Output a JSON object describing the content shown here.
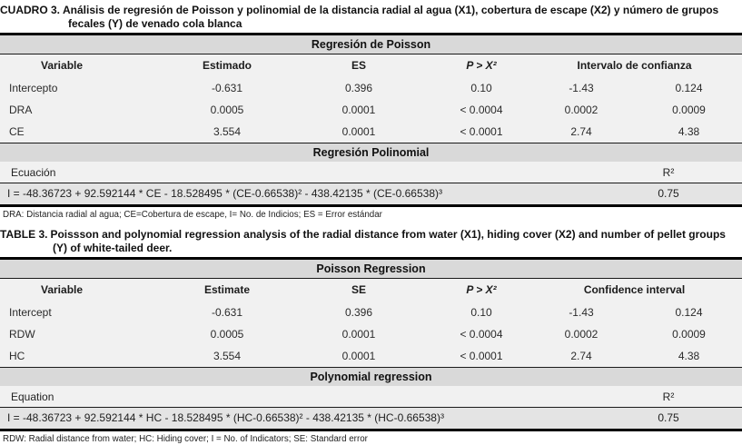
{
  "colors": {
    "section_band_bg": "#d9d9d9",
    "table_body_bg": "#f1f1f1",
    "equation_row_bg": "#e4e4e4",
    "rule_color": "#000000",
    "page_bg": "#ffffff"
  },
  "tables": [
    {
      "language": "spanish",
      "title_label": "CUADRO 3.",
      "title_text": "Análisis de regresión de Poisson y polinomial de la distancia radial al agua (X1), cobertura de escape (X2) y número de grupos fecales (Y) de venado cola blanca",
      "section1": "Regresión de Poisson",
      "headers": {
        "variable": "Variable",
        "estimate": "Estimado",
        "se": "ES",
        "p": "P > X²",
        "ci": "Intervalo de confianza"
      },
      "rows": [
        {
          "variable": "Intercepto",
          "estimate": "-0.631",
          "se": "0.396",
          "p": "0.10",
          "ci_low": "-1.43",
          "ci_high": "0.124"
        },
        {
          "variable": "DRA",
          "estimate": "0.0005",
          "se": "0.0001",
          "p": "< 0.0004",
          "ci_low": "0.0002",
          "ci_high": "0.0009"
        },
        {
          "variable": "CE",
          "estimate": "3.554",
          "se": "0.0001",
          "p": "< 0.0001",
          "ci_low": "2.74",
          "ci_high": "4.38"
        }
      ],
      "section2": "Regresión Polinomial",
      "equation_label": "Ecuación",
      "r2_label": "R²",
      "equation": "I = -48.36723 + 92.592144 * CE - 18.528495 * (CE-0.66538)² - 438.42135 * (CE-0.66538)³",
      "r2_value": "0.75",
      "footnote": "DRA: Distancia radial al agua; CE=Cobertura de escape, I= No. de Indicios; ES = Error estándar"
    },
    {
      "language": "english",
      "title_label": "TABLE 3.",
      "title_text": "Poissson and polynomial regression analysis of the radial distance from water (X1), hiding cover (X2) and number of pellet groups (Y) of white-tailed deer.",
      "section1": "Poisson Regression",
      "headers": {
        "variable": "Variable",
        "estimate": "Estimate",
        "se": "SE",
        "p": "P > X²",
        "ci": "Confidence interval"
      },
      "rows": [
        {
          "variable": "Intercept",
          "estimate": "-0.631",
          "se": "0.396",
          "p": "0.10",
          "ci_low": "-1.43",
          "ci_high": "0.124"
        },
        {
          "variable": "RDW",
          "estimate": "0.0005",
          "se": "0.0001",
          "p": "< 0.0004",
          "ci_low": "0.0002",
          "ci_high": "0.0009"
        },
        {
          "variable": "HC",
          "estimate": "3.554",
          "se": "0.0001",
          "p": "< 0.0001",
          "ci_low": "2.74",
          "ci_high": "4.38"
        }
      ],
      "section2": "Polynomial regression",
      "equation_label": "Equation",
      "r2_label": "R²",
      "equation": "I = -48.36723 + 92.592144 * HC - 18.528495 * (HC-0.66538)² - 438.42135 * (HC-0.66538)³",
      "r2_value": "0.75",
      "footnote": "RDW: Radial distance from water; HC: Hiding cover; I = No. of Indicators; SE: Standard error"
    }
  ]
}
